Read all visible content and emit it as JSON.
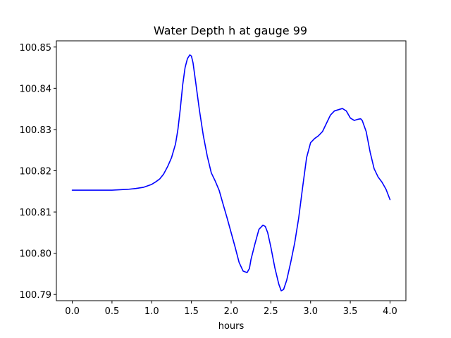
{
  "chart_data": {
    "type": "line",
    "title": "Water Depth h at gauge 99",
    "xlabel": "hours",
    "ylabel": "",
    "xlim": [
      -0.2,
      4.2
    ],
    "ylim": [
      100.7885,
      100.8515
    ],
    "grid": false,
    "legend": null,
    "line_color": "#0000ff",
    "x_ticks": [
      0.0,
      0.5,
      1.0,
      1.5,
      2.0,
      2.5,
      3.0,
      3.5,
      4.0
    ],
    "x_tick_labels": [
      "0.0",
      "0.5",
      "1.0",
      "1.5",
      "2.0",
      "2.5",
      "3.0",
      "3.5",
      "4.0"
    ],
    "y_ticks": [
      100.79,
      100.8,
      100.81,
      100.82,
      100.83,
      100.84,
      100.85
    ],
    "y_tick_labels": [
      "100.79",
      "100.80",
      "100.81",
      "100.82",
      "100.83",
      "100.84",
      "100.85"
    ],
    "series": [
      {
        "x": [
          0.0,
          0.2,
          0.4,
          0.5,
          0.6,
          0.7,
          0.8,
          0.9,
          1.0,
          1.05,
          1.1,
          1.15,
          1.2,
          1.25,
          1.3,
          1.33,
          1.36,
          1.39,
          1.42,
          1.45,
          1.48,
          1.5,
          1.52,
          1.55,
          1.6,
          1.65,
          1.7,
          1.75,
          1.8,
          1.85,
          1.9,
          1.95,
          2.0,
          2.05,
          2.1,
          2.15,
          2.2,
          2.23,
          2.25,
          2.3,
          2.35,
          2.4,
          2.43,
          2.46,
          2.5,
          2.55,
          2.6,
          2.63,
          2.66,
          2.7,
          2.75,
          2.8,
          2.85,
          2.9,
          2.95,
          3.0,
          3.05,
          3.1,
          3.15,
          3.2,
          3.25,
          3.3,
          3.35,
          3.4,
          3.45,
          3.5,
          3.55,
          3.6,
          3.63,
          3.65,
          3.7,
          3.75,
          3.8,
          3.85,
          3.9,
          3.95,
          4.0
        ],
        "y": [
          100.8153,
          100.8153,
          100.8153,
          100.8153,
          100.8154,
          100.8155,
          100.8157,
          100.816,
          100.8167,
          100.8173,
          100.818,
          100.8192,
          100.821,
          100.8232,
          100.8265,
          100.83,
          100.835,
          100.8408,
          100.845,
          100.8472,
          100.8481,
          100.8478,
          100.8462,
          100.842,
          100.8348,
          100.8285,
          100.8235,
          100.8195,
          100.8175,
          100.8152,
          100.8118,
          100.8085,
          100.805,
          100.8015,
          100.7978,
          100.7957,
          100.7953,
          100.7963,
          100.7985,
          100.8023,
          100.8058,
          100.8068,
          100.8065,
          100.805,
          100.8015,
          100.7965,
          100.7925,
          100.7909,
          100.7912,
          100.7935,
          100.7978,
          100.8025,
          100.8085,
          100.816,
          100.8232,
          100.8268,
          100.8278,
          100.8285,
          100.8295,
          100.8315,
          100.8335,
          100.8345,
          100.8348,
          100.8351,
          100.8345,
          100.8328,
          100.8322,
          100.8325,
          100.8326,
          100.8322,
          100.8295,
          100.8245,
          100.8205,
          100.8185,
          100.8172,
          100.8155,
          100.813
        ]
      }
    ]
  }
}
